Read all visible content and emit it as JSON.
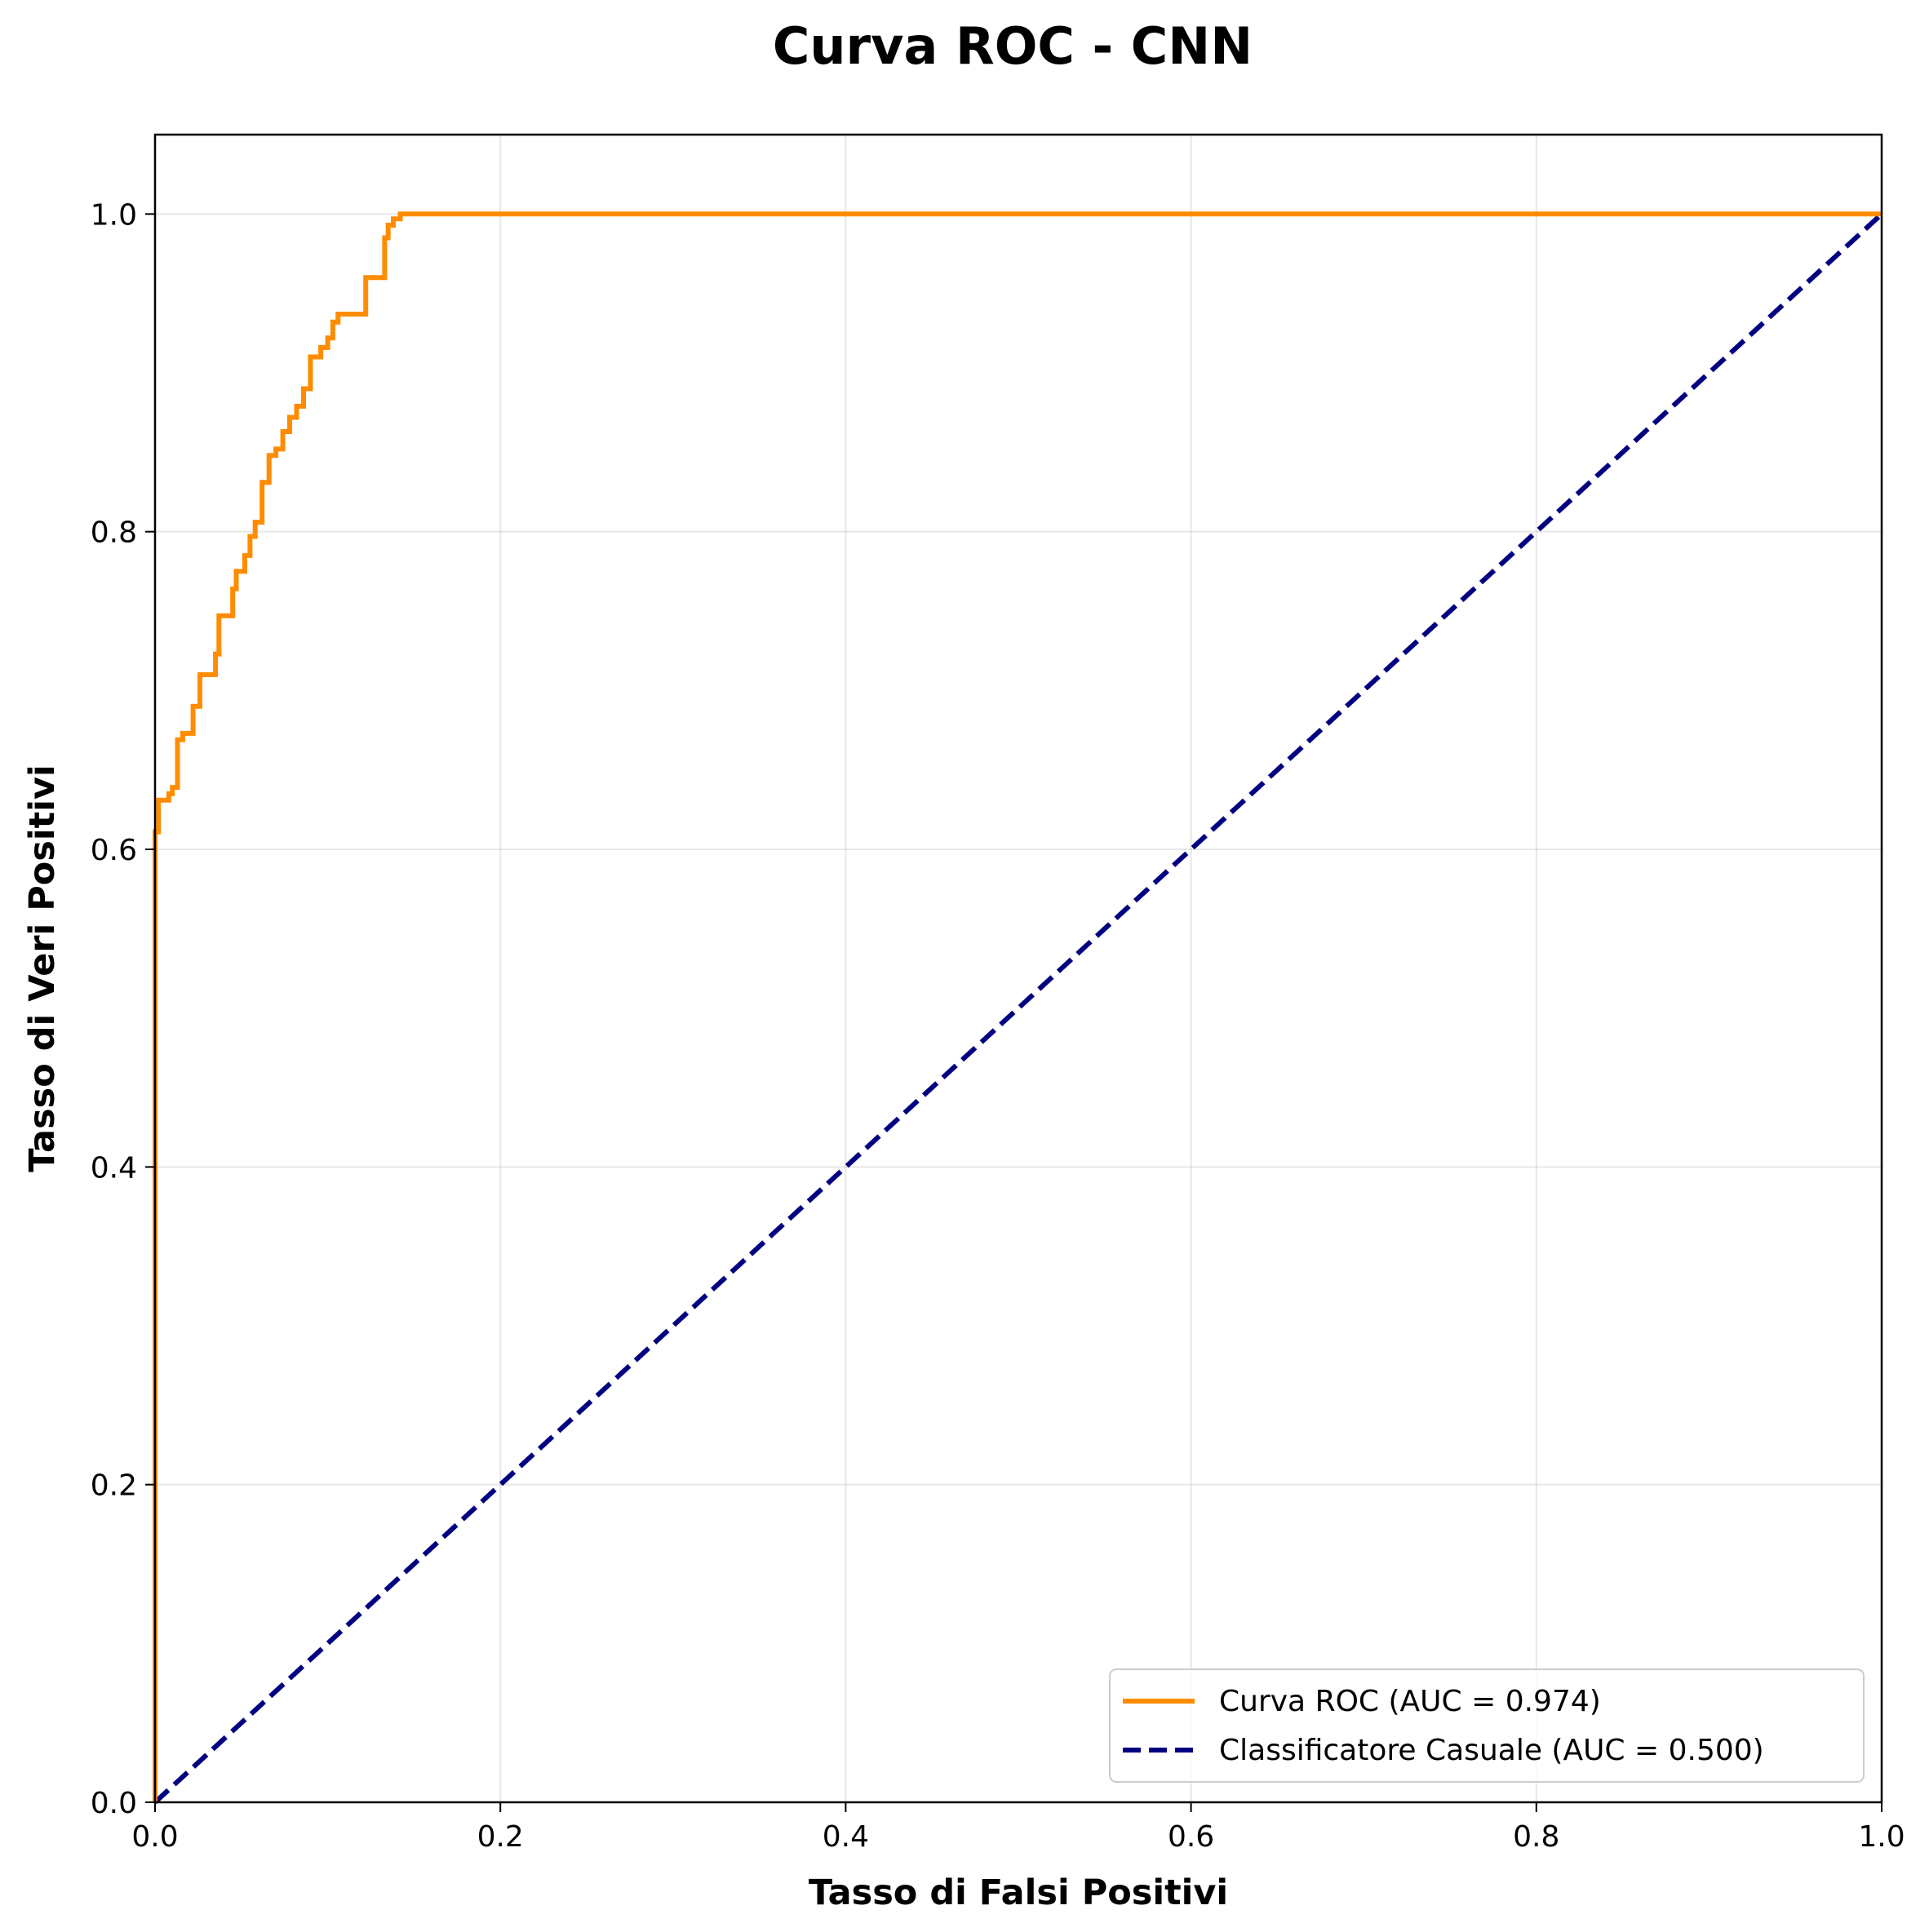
{
  "chart_data": {
    "type": "line",
    "title": "Curva ROC - CNN",
    "xlabel": "Tasso di Falsi Positivi",
    "ylabel": "Tasso di Veri Positivi",
    "xlim": [
      0.0,
      1.0
    ],
    "ylim": [
      0.0,
      1.05
    ],
    "xticks": [
      "0.0",
      "0.2",
      "0.4",
      "0.6",
      "0.8",
      "1.0"
    ],
    "yticks": [
      "0.0",
      "0.2",
      "0.4",
      "0.6",
      "0.8",
      "1.0"
    ],
    "grid": true,
    "legend_position": "lower right",
    "series": [
      {
        "name": "Curva ROC (AUC = 0.974)",
        "color": "#ff8c00",
        "style": "solid",
        "x": [
          0.0,
          0.0,
          0.002,
          0.002,
          0.008,
          0.008,
          0.01,
          0.01,
          0.013,
          0.013,
          0.016,
          0.016,
          0.022,
          0.022,
          0.026,
          0.026,
          0.035,
          0.035,
          0.037,
          0.037,
          0.045,
          0.045,
          0.047,
          0.047,
          0.052,
          0.052,
          0.055,
          0.055,
          0.058,
          0.058,
          0.062,
          0.062,
          0.066,
          0.066,
          0.07,
          0.07,
          0.072,
          0.072,
          0.074,
          0.074,
          0.078,
          0.078,
          0.082,
          0.082,
          0.086,
          0.086,
          0.09,
          0.09,
          0.096,
          0.096,
          0.1,
          0.1,
          0.103,
          0.103,
          0.106,
          0.106,
          0.122,
          0.122,
          0.133,
          0.133,
          0.135,
          0.135,
          0.138,
          0.138,
          0.142,
          0.142,
          1.0
        ],
        "y": [
          0.0,
          0.611,
          0.611,
          0.631,
          0.631,
          0.635,
          0.635,
          0.639,
          0.639,
          0.669,
          0.669,
          0.673,
          0.673,
          0.69,
          0.69,
          0.71,
          0.71,
          0.723,
          0.723,
          0.747,
          0.747,
          0.764,
          0.764,
          0.775,
          0.775,
          0.785,
          0.785,
          0.797,
          0.797,
          0.806,
          0.806,
          0.831,
          0.831,
          0.848,
          0.848,
          0.852,
          0.852,
          0.852,
          0.852,
          0.863,
          0.863,
          0.872,
          0.872,
          0.879,
          0.879,
          0.89,
          0.89,
          0.91,
          0.91,
          0.916,
          0.916,
          0.922,
          0.922,
          0.932,
          0.932,
          0.937,
          0.937,
          0.96,
          0.96,
          0.985,
          0.985,
          0.993,
          0.993,
          0.997,
          0.997,
          1.0,
          1.0
        ]
      },
      {
        "name": "Classificatore Casuale (AUC = 0.500)",
        "color": "#000080",
        "style": "dashed",
        "x": [
          0.0,
          1.0
        ],
        "y": [
          0.0,
          1.0
        ]
      }
    ]
  }
}
